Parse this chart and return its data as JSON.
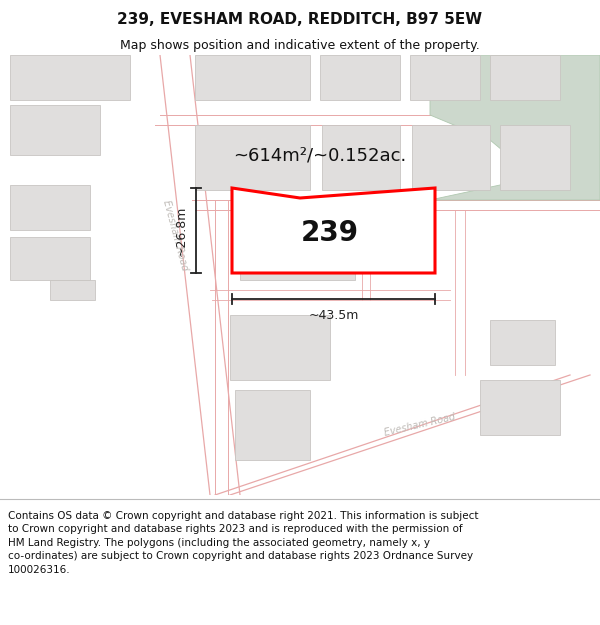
{
  "title": "239, EVESHAM ROAD, REDDITCH, B97 5EW",
  "subtitle": "Map shows position and indicative extent of the property.",
  "area_label": "~614m²/~0.152ac.",
  "number_label": "239",
  "width_label": "~43.5m",
  "height_label": "~26.8m",
  "footer_text": "Contains OS data © Crown copyright and database right 2021. This information is subject\nto Crown copyright and database rights 2023 and is reproduced with the permission of\nHM Land Registry. The polygons (including the associated geometry, namely x, y\nco-ordinates) are subject to Crown copyright and database rights 2023 Ordnance Survey\n100026316.",
  "map_bg": "#f7f5f3",
  "road_line_color": "#e8a8a8",
  "road_fill_color": "#f0e0e0",
  "building_face": "#e0dedd",
  "building_edge": "#c8c5c2",
  "plot_color": "#ff0000",
  "plot_fill": "#ffffff",
  "green_color": "#ccd8cc",
  "green_edge": "#b0c8b0",
  "dim_color": "#222222",
  "road_label_color": "#c0bcb8",
  "title_fontsize": 11,
  "subtitle_fontsize": 9,
  "area_fontsize": 13,
  "number_fontsize": 20,
  "dim_fontsize": 9,
  "footer_fontsize": 7.5
}
